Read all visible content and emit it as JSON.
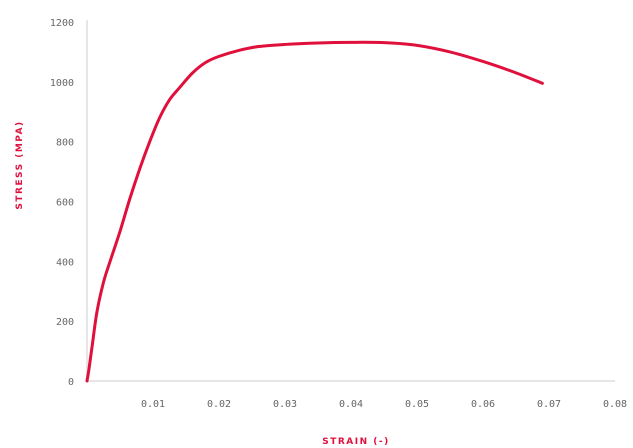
{
  "chart_data": {
    "type": "line",
    "title": "",
    "xlabel": "STRAIN (-)",
    "ylabel": "STRESS (MPA)",
    "xlim": [
      0,
      0.08
    ],
    "ylim": [
      0,
      1200
    ],
    "x_ticks": [
      "0.01",
      "0.02",
      "0.03",
      "0.04",
      "0.05",
      "0.06",
      "0.07",
      "0.08"
    ],
    "y_ticks": [
      "0",
      "200",
      "400",
      "600",
      "800",
      "1000",
      "1200"
    ],
    "grid": false,
    "legend": "none",
    "series": [
      {
        "color": "#e0103c",
        "x": [
          0.0,
          0.0003,
          0.0008,
          0.0015,
          0.0025,
          0.0035,
          0.005,
          0.0065,
          0.008,
          0.0095,
          0.011,
          0.0125,
          0.014,
          0.016,
          0.018,
          0.02,
          0.023,
          0.026,
          0.03,
          0.035,
          0.04,
          0.045,
          0.05,
          0.055,
          0.06,
          0.065,
          0.069
        ],
        "y": [
          0,
          40,
          120,
          230,
          330,
          400,
          500,
          610,
          710,
          800,
          880,
          940,
          980,
          1030,
          1065,
          1085,
          1105,
          1118,
          1125,
          1130,
          1132,
          1131,
          1122,
          1100,
          1068,
          1030,
          995
        ]
      }
    ]
  },
  "colors": {
    "accent": "#e0103c",
    "axis": "#e6e6e6",
    "tick_text": "#666666"
  }
}
